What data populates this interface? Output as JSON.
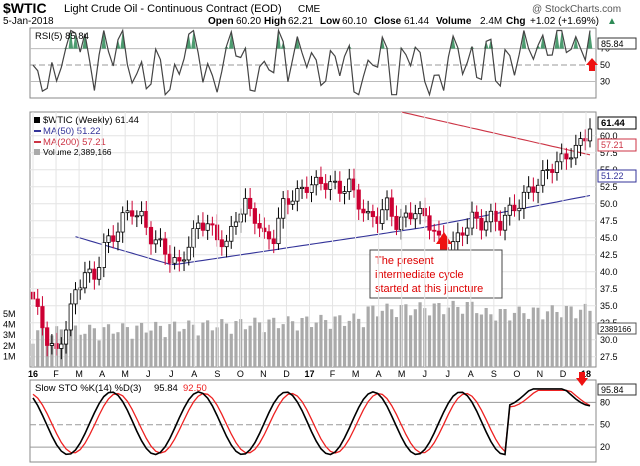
{
  "header": {
    "symbol": "$WTIC",
    "description": "Light Crude Oil - Continuous Contract (EOD)",
    "exchange": "CME",
    "date": "5-Jan-2018",
    "open_label": "Open",
    "open": "60.20",
    "high_label": "High",
    "high": "62.21",
    "low_label": "Low",
    "low": "60.10",
    "close_label": "Close",
    "close": "61.44",
    "volume_label": "Volume",
    "volume": "2.4M",
    "chg_label": "Chg",
    "chg": "+1.02 (+1.69%)",
    "chg_arrow": "▲",
    "credit": "@ StockCharts.com"
  },
  "rsi_panel": {
    "legend": "RSI(5) 85.84",
    "last_value": "85.84",
    "ticks": [
      "70",
      "50",
      "30"
    ],
    "overbought": 70,
    "oversold": 30,
    "ylim": [
      10,
      95
    ]
  },
  "price_panel": {
    "legend_main": "$WTIC (Weekly) 61.44",
    "legend_ma50": "MA(50) 51.22",
    "legend_ma200": "MA(200) 57.21",
    "legend_volume": "Volume 2,389,166",
    "last_close": "61.44",
    "ma50_last": "51.22",
    "ma200_last": "57.21",
    "volume_last": "2389166",
    "ticks": [
      "60.0",
      "57.5",
      "55.0",
      "52.5",
      "50.0",
      "47.5",
      "45.0",
      "42.5",
      "40.0",
      "37.5",
      "35.0",
      "32.5",
      "30.0",
      "27.5"
    ],
    "volume_ticks": [
      "5M",
      "4M",
      "3M",
      "2M",
      "1M"
    ],
    "annotation": "The present intermediate cycle started at this juncture",
    "ylim": [
      26,
      63.5
    ],
    "volume_max": 7
  },
  "x_axis": {
    "labels": [
      "16",
      "F",
      "M",
      "A",
      "M",
      "J",
      "J",
      "A",
      "S",
      "O",
      "N",
      "D",
      "17",
      "F",
      "M",
      "A",
      "M",
      "J",
      "J",
      "A",
      "S",
      "O",
      "N",
      "D",
      "18"
    ]
  },
  "sto_panel": {
    "legend_prefix": "Slow STO %K(14) %D(3)",
    "k_value": "95.84",
    "d_value": "92.50",
    "last_value": "95.84",
    "ticks": [
      "80",
      "50",
      "20"
    ],
    "ylim": [
      0,
      110
    ]
  },
  "colors": {
    "up": "#000000",
    "down": "#cc0033",
    "ma50": "#333399",
    "ma200": "#cc3344",
    "volume": "#aaaaaa",
    "rsi_fill": "#2e8b57",
    "stoK": "#000000",
    "stoD": "#ee2222",
    "arrow": "#ee1111"
  },
  "chart_data": [
    {
      "type": "candlestick",
      "title": "$WTIC Light Crude Oil - Continuous Contract (EOD) CME",
      "x": [
        "2016-01",
        "2016-02",
        "2016-03",
        "2016-04",
        "2016-05",
        "2016-06",
        "2016-07",
        "2016-08",
        "2016-09",
        "2016-10",
        "2016-11",
        "2016-12",
        "2017-01",
        "2017-02",
        "2017-03",
        "2017-04",
        "2017-05",
        "2017-06",
        "2017-07",
        "2017-08",
        "2017-09",
        "2017-10",
        "2017-11",
        "2017-12",
        "2018-01"
      ],
      "series": [
        {
          "name": "$WTIC (Weekly)",
          "values": [
            33.6,
            33.8,
            38.3,
            45.9,
            49.1,
            48.3,
            41.6,
            47.6,
            48.2,
            46.9,
            51.7,
            53.7,
            53.2,
            53.9,
            49.5,
            49.3,
            48.4,
            45.8,
            50.2,
            47.3,
            52.1,
            54.5,
            57.3,
            60.4,
            61.44
          ]
        },
        {
          "name": "MA(50)",
          "values": [
            null,
            null,
            null,
            null,
            null,
            null,
            null,
            null,
            null,
            41.6,
            42.3,
            43.2,
            44.4,
            45.6,
            46.2,
            46.7,
            47.2,
            47.2,
            47.5,
            47.8,
            48.3,
            49.0,
            49.9,
            50.6,
            51.22
          ]
        },
        {
          "name": "MA(200)",
          "values": [
            null,
            null,
            null,
            null,
            null,
            null,
            null,
            null,
            null,
            null,
            null,
            null,
            null,
            null,
            null,
            null,
            null,
            null,
            null,
            null,
            null,
            null,
            58.4,
            57.6,
            57.21
          ]
        }
      ],
      "ylim": [
        26,
        63.5
      ]
    },
    {
      "type": "line",
      "title": "RSI(5)",
      "x": [
        "2016-01",
        "2016-04",
        "2016-07",
        "2016-10",
        "2017-01",
        "2017-04",
        "2017-07",
        "2017-10",
        "2018-01"
      ],
      "series": [
        {
          "name": "RSI(5)",
          "values": [
            34,
            70,
            35,
            55,
            62,
            42,
            60,
            68,
            85.84
          ]
        }
      ],
      "ylim": [
        10,
        95
      ]
    },
    {
      "type": "line",
      "title": "Slow STO %K(14) %D(3)",
      "x": [
        "2016-01",
        "2016-04",
        "2016-07",
        "2016-10",
        "2017-01",
        "2017-04",
        "2017-07",
        "2017-10",
        "2018-01"
      ],
      "series": [
        {
          "name": "%K(14)",
          "values": [
            15,
            90,
            20,
            60,
            85,
            15,
            85,
            93,
            95.84
          ]
        },
        {
          "name": "%D(3)",
          "values": [
            18,
            85,
            25,
            55,
            82,
            20,
            80,
            90,
            92.5
          ]
        }
      ],
      "ylim": [
        0,
        110
      ]
    }
  ]
}
